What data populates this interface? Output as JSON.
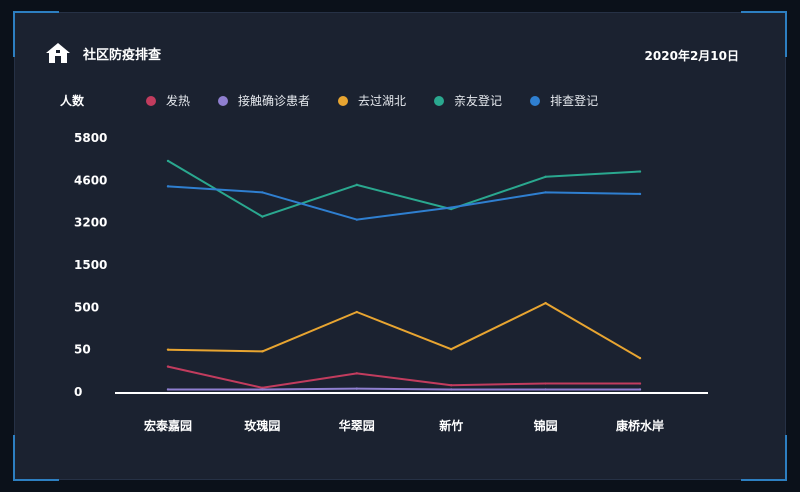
{
  "header": {
    "title": "社区防疫排查",
    "date": "2020年2月10日"
  },
  "colors": {
    "background": "#1b2230",
    "accent": "#2d7fc1"
  },
  "chart_data": {
    "type": "line",
    "ylabel": "人数",
    "categories": [
      "宏泰嘉园",
      "玫瑰园",
      "华翠园",
      "新竹",
      "锦园",
      "康桥水岸"
    ],
    "y_ticks": [
      0,
      50,
      500,
      1500,
      3200,
      4600,
      5800
    ],
    "y_scale": "non-uniform (evenly spaced ticks)",
    "grid": false,
    "legend_position": "top",
    "series": [
      {
        "name": "发热",
        "color": "#c23c5e",
        "values": [
          30,
          5,
          22,
          8,
          10,
          10
        ]
      },
      {
        "name": "接触确诊患者",
        "color": "#8f7fd0",
        "values": [
          3,
          3,
          4,
          3,
          3,
          3
        ]
      },
      {
        "name": "去过湖北",
        "color": "#e8a531",
        "values": [
          50,
          48,
          450,
          55,
          600,
          40
        ]
      },
      {
        "name": "亲友登记",
        "color": "#2aa88f",
        "values": [
          5150,
          3400,
          4450,
          3650,
          4700,
          4850
        ]
      },
      {
        "name": "排查登记",
        "color": "#2f7fd0",
        "values": [
          4400,
          4200,
          3300,
          3700,
          4200,
          4150
        ]
      }
    ]
  }
}
